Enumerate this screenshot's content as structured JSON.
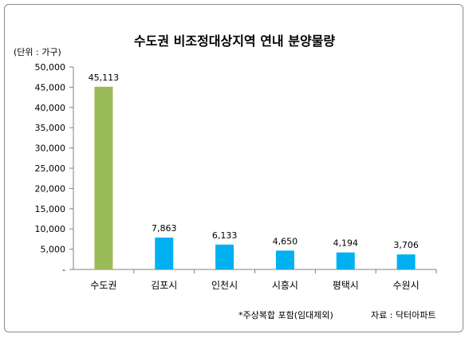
{
  "chart_data": {
    "type": "bar",
    "title": "수도권 비조정대상지역 연내 분양물량",
    "unit_label": "(단위 : 가구)",
    "categories": [
      "수도권",
      "김포시",
      "인천시",
      "시흥시",
      "평택시",
      "수원시"
    ],
    "values": [
      45113,
      7863,
      6133,
      4650,
      4194,
      3706
    ],
    "value_labels": [
      "45,113",
      "7,863",
      "6,133",
      "4,650",
      "4,194",
      "3,706"
    ],
    "ylim": [
      0,
      50000
    ],
    "yticks": [
      0,
      5000,
      10000,
      15000,
      20000,
      25000,
      30000,
      35000,
      40000,
      45000,
      50000
    ],
    "ytick_labels": [
      "-",
      "5,000",
      "10,000",
      "15,000",
      "20,000",
      "25,000",
      "30,000",
      "35,000",
      "40,000",
      "45,000",
      "50,000"
    ],
    "grid": false,
    "legend": "none",
    "bar_colors": [
      "#9bbb59",
      "#00b0f0",
      "#00b0f0",
      "#00b0f0",
      "#00b0f0",
      "#00b0f0"
    ],
    "footnote": "*주상복합 포함(임대제외)",
    "source": "자료 : 닥터아파트"
  }
}
